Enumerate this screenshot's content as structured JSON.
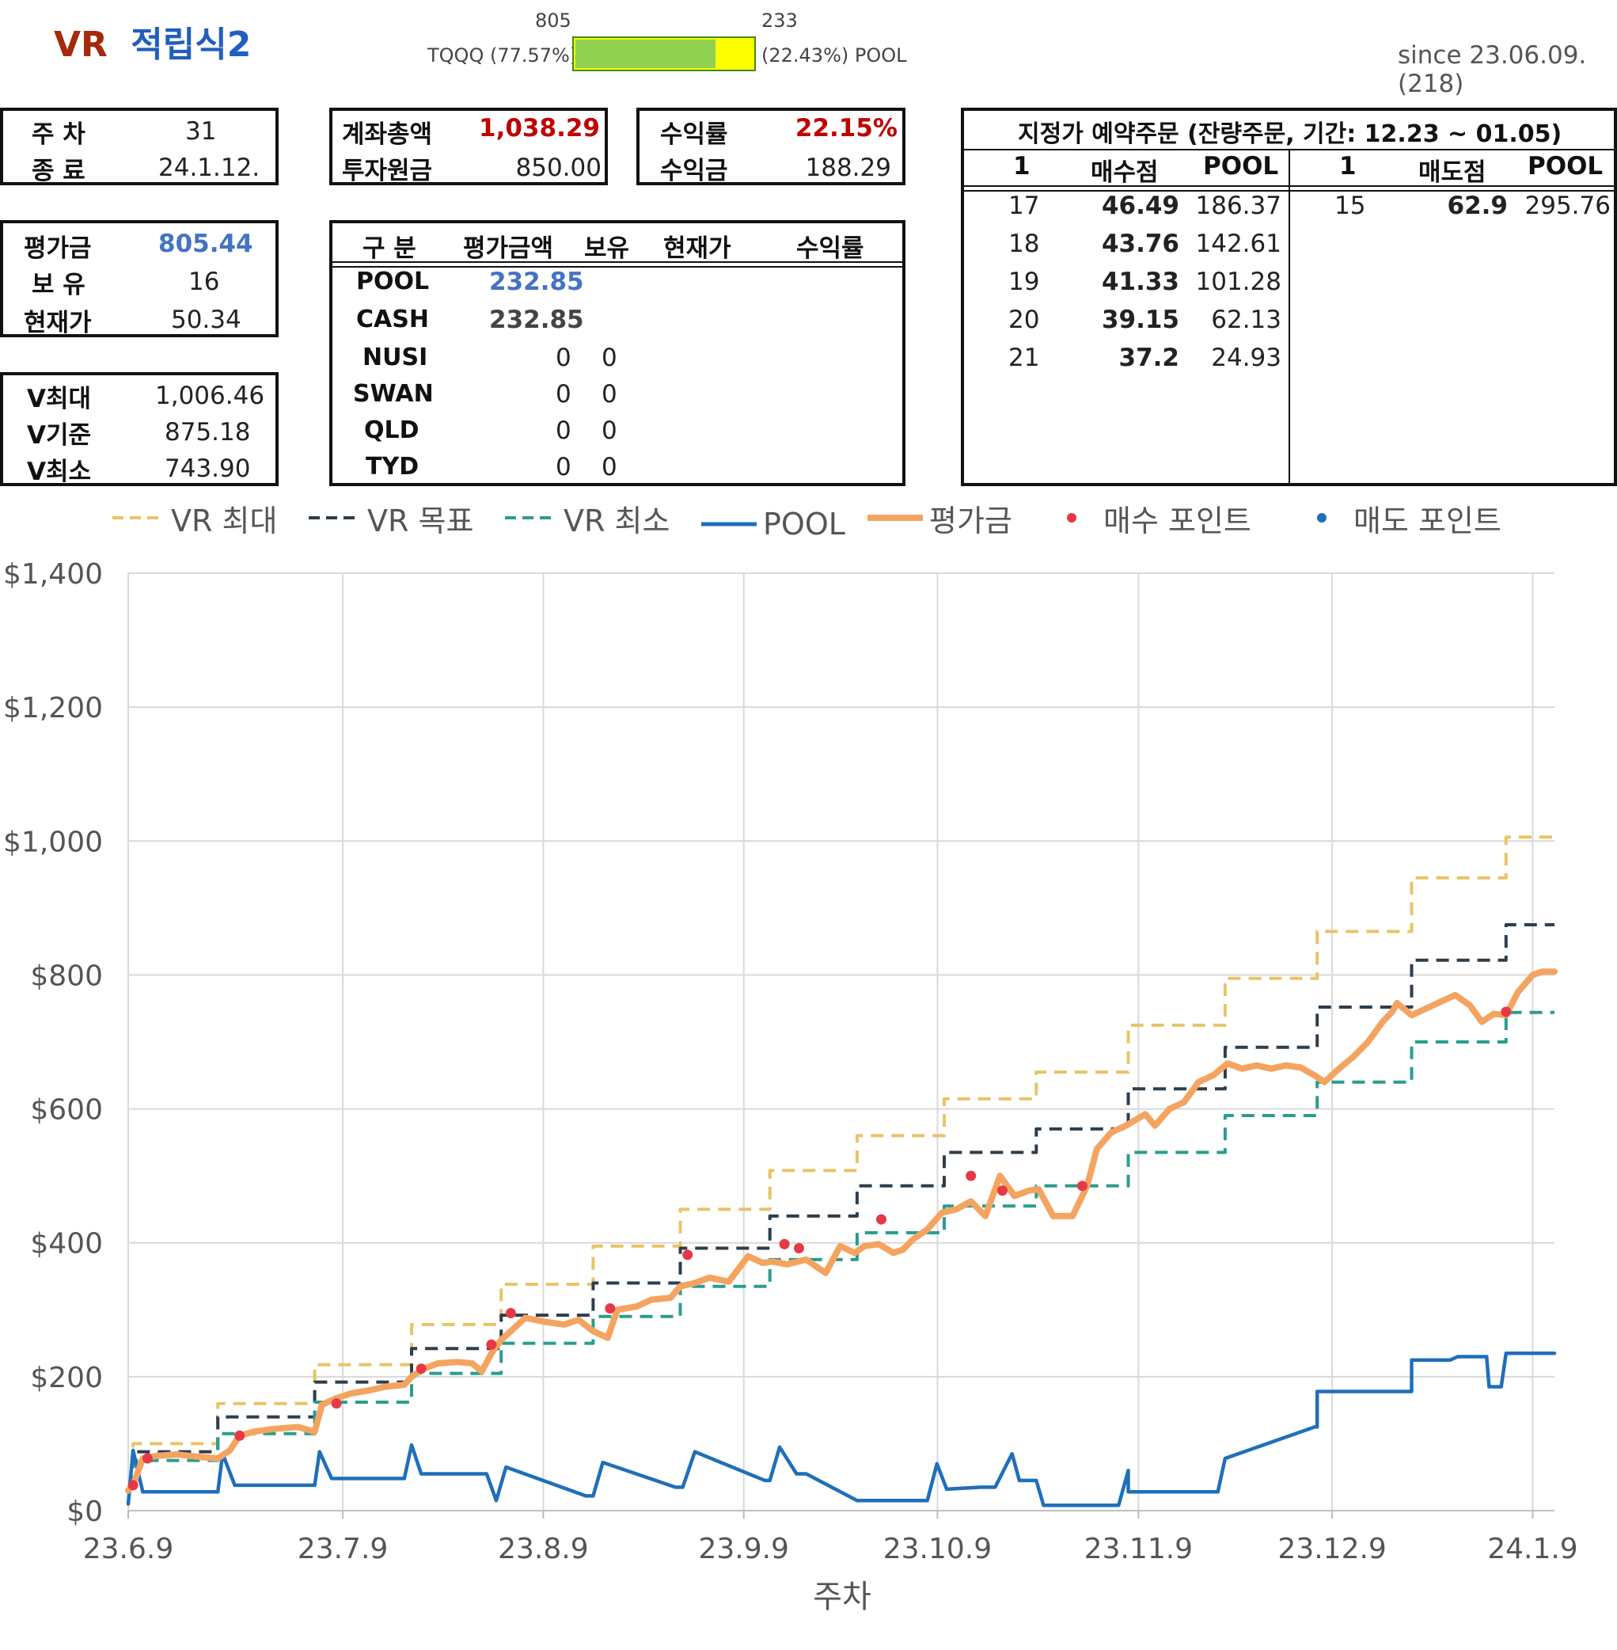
{
  "header": {
    "title_vr": "VR",
    "title_rest": "적립식2",
    "bar_left_value": "805",
    "bar_right_value": "233",
    "bar_left_label": "TQQQ (77.57%)",
    "bar_right_label": "(22.43%) POOL",
    "bar_fraction": 0.7757,
    "since": "since 23.06.09.(218)"
  },
  "week_box": {
    "week_label": "주 차",
    "week_value": "31",
    "end_label": "종 료",
    "end_value": "24.1.12."
  },
  "account_box": {
    "total_label": "계좌총액",
    "total_value": "1,038.29",
    "principal_label": "투자원금",
    "principal_value": "850.00"
  },
  "return_box": {
    "rate_label": "수익률",
    "rate_value": "22.15%",
    "profit_label": "수익금",
    "profit_value": "188.29"
  },
  "eval_box": {
    "eval_label": "평가금",
    "eval_value": "805.44",
    "hold_label": "보 유",
    "hold_value": "16",
    "price_label": "현재가",
    "price_value": "50.34"
  },
  "v_box": {
    "vmax_label": "V최대",
    "vmax_value": "1,006.46",
    "vbase_label": "V기준",
    "vbase_value": "875.18",
    "vmin_label": "V최소",
    "vmin_value": "743.90"
  },
  "holdings": {
    "headers": [
      "구 분",
      "평가금액",
      "보유",
      "현재가",
      "수익률"
    ],
    "rows": [
      {
        "name": "POOL",
        "amount": "232.85",
        "hold": ""
      },
      {
        "name": "CASH",
        "amount": "232.85",
        "hold": ""
      },
      {
        "name": "NUSI",
        "amount": "0",
        "hold": "0"
      },
      {
        "name": "SWAN",
        "amount": "0",
        "hold": "0"
      },
      {
        "name": "QLD",
        "amount": "0",
        "hold": "0"
      },
      {
        "name": "TYD",
        "amount": "0",
        "hold": "0"
      }
    ]
  },
  "orders": {
    "title": "지정가 예약주문 (잔량주문, 기간: 12.23 ~ 01.05)",
    "buy_headers": [
      "1",
      "매수점",
      "POOL"
    ],
    "sell_headers": [
      "1",
      "매도점",
      "POOL"
    ],
    "buy_rows": [
      {
        "n": "17",
        "price": "46.49",
        "pool": "186.37"
      },
      {
        "n": "18",
        "price": "43.76",
        "pool": "142.61"
      },
      {
        "n": "19",
        "price": "41.33",
        "pool": "101.28"
      },
      {
        "n": "20",
        "price": "39.15",
        "pool": "62.13"
      },
      {
        "n": "21",
        "price": "37.2",
        "pool": "24.93"
      }
    ],
    "sell_rows": [
      {
        "n": "15",
        "price": "62.9",
        "pool": "295.76"
      }
    ]
  },
  "chart_data": {
    "type": "line",
    "xlabel": "주차",
    "ylabel": "",
    "ylim": [
      0,
      1400
    ],
    "yticks": [
      0,
      200,
      400,
      600,
      800,
      1000,
      1200,
      1400
    ],
    "ytick_labels": [
      "$0",
      "$200",
      "$400",
      "$600",
      "$800",
      "$1,000",
      "$1,200",
      "$1,400"
    ],
    "xticks": [
      0,
      4.43,
      8.57,
      12.71,
      16.71,
      20.86,
      24.86,
      29.0
    ],
    "xtick_labels": [
      "23.6.9",
      "23.7.9",
      "23.8.9",
      "23.9.9",
      "23.10.9",
      "23.11.9",
      "23.12.9",
      "24.1.9"
    ],
    "xlim": [
      0,
      29.45
    ],
    "grid": true,
    "legend_position": "top",
    "colors": {
      "vmax": "#e8c468",
      "vtarget": "#2d3e4c",
      "vmin": "#2a9d8f",
      "pool": "#1f6fba",
      "eval": "#f4a460",
      "buy": "#e63946",
      "sell": "#1f6fba"
    },
    "series": [
      {
        "name": "VR 최대",
        "style": "dashed",
        "x": [
          0,
          0.1,
          0.1,
          1.85,
          1.85,
          3.85,
          3.85,
          5.85,
          5.85,
          7.7,
          7.7,
          9.6,
          9.6,
          11.4,
          11.4,
          13.25,
          13.25,
          15.05,
          15.05,
          16.85,
          16.85,
          18.75,
          18.75,
          20.65,
          20.65,
          22.65,
          22.65,
          24.55,
          24.55,
          26.5,
          26.5,
          28.45,
          28.45,
          29.45
        ],
        "y": [
          40,
          40,
          100,
          100,
          160,
          160,
          218,
          218,
          278,
          278,
          338,
          338,
          395,
          395,
          450,
          450,
          508,
          508,
          560,
          560,
          615,
          615,
          655,
          655,
          725,
          725,
          795,
          795,
          865,
          865,
          945,
          945,
          1006,
          1006
        ]
      },
      {
        "name": "VR 목표",
        "style": "dashed",
        "x": [
          0,
          0.1,
          0.1,
          1.85,
          1.85,
          3.85,
          3.85,
          5.85,
          5.85,
          7.7,
          7.7,
          9.6,
          9.6,
          11.4,
          11.4,
          13.25,
          13.25,
          15.05,
          15.05,
          16.85,
          16.85,
          18.75,
          18.75,
          20.65,
          20.65,
          22.65,
          22.65,
          24.55,
          24.55,
          26.5,
          26.5,
          28.45,
          28.45,
          29.45
        ],
        "y": [
          40,
          40,
          88,
          88,
          140,
          140,
          192,
          192,
          242,
          242,
          292,
          292,
          340,
          340,
          392,
          392,
          440,
          440,
          485,
          485,
          535,
          535,
          570,
          570,
          630,
          630,
          692,
          692,
          752,
          752,
          822,
          822,
          875,
          875
        ]
      },
      {
        "name": "VR 최소",
        "style": "dashed",
        "x": [
          0,
          0.1,
          0.1,
          1.85,
          1.85,
          3.85,
          3.85,
          5.85,
          5.85,
          7.7,
          7.7,
          9.6,
          9.6,
          11.4,
          11.4,
          13.25,
          13.25,
          15.05,
          15.05,
          16.85,
          16.85,
          18.75,
          18.75,
          20.65,
          20.65,
          22.65,
          22.65,
          24.55,
          24.55,
          26.5,
          26.5,
          28.45,
          28.45,
          29.45
        ],
        "y": [
          40,
          40,
          75,
          75,
          115,
          115,
          162,
          162,
          205,
          205,
          250,
          250,
          290,
          290,
          335,
          335,
          375,
          375,
          415,
          415,
          455,
          455,
          485,
          485,
          535,
          535,
          590,
          590,
          640,
          640,
          700,
          700,
          744,
          744
        ]
      },
      {
        "name": "POOL",
        "style": "solid",
        "x": [
          0,
          0.1,
          0.3,
          1.85,
          1.95,
          2.2,
          3.85,
          3.95,
          4.2,
          5.7,
          5.85,
          6.05,
          7.4,
          7.6,
          7.8,
          9.45,
          9.6,
          9.8,
          11.3,
          11.45,
          11.7,
          13.15,
          13.25,
          13.45,
          13.8,
          14,
          15.05,
          15.1,
          15.35,
          16.5,
          16.7,
          16.9,
          17.6,
          17.75,
          17.9,
          18.25,
          18.4,
          18.75,
          18.9,
          19.15,
          20.45,
          20.65,
          20.65,
          22.5,
          22.65,
          22.65,
          24.5,
          24.55,
          24.55,
          26.45,
          26.5,
          26.5,
          27.3,
          27.45,
          27.55,
          28.05,
          28.1,
          28.35,
          28.45,
          29.45
        ],
        "y": [
          10,
          90,
          28,
          28,
          85,
          38,
          38,
          88,
          48,
          48,
          98,
          55,
          55,
          15,
          65,
          22,
          22,
          72,
          35,
          35,
          88,
          45,
          45,
          95,
          55,
          55,
          15,
          15,
          15,
          15,
          70,
          32,
          35,
          35,
          35,
          85,
          45,
          45,
          8,
          8,
          8,
          60,
          28,
          28,
          78,
          78,
          125,
          125,
          178,
          178,
          178,
          225,
          225,
          230,
          230,
          230,
          185,
          185,
          235,
          235
        ]
      },
      {
        "name": "평가금",
        "style": "solid",
        "x": [
          0,
          0.1,
          0.3,
          0.6,
          1,
          1.5,
          1.85,
          2.1,
          2.3,
          2.6,
          3,
          3.5,
          3.85,
          4,
          4.3,
          4.6,
          5,
          5.3,
          5.7,
          5.85,
          6.1,
          6.4,
          6.8,
          7.1,
          7.3,
          7.5,
          7.7,
          7.9,
          8.2,
          8.6,
          9,
          9.3,
          9.6,
          9.9,
          10.1,
          10.5,
          10.8,
          11.2,
          11.4,
          11.7,
          12,
          12.4,
          12.8,
          13.1,
          13.3,
          13.6,
          14,
          14.4,
          14.7,
          15,
          15.2,
          15.5,
          15.8,
          16,
          16.2,
          16.5,
          16.8,
          17.1,
          17.4,
          17.7,
          18,
          18.3,
          18.6,
          18.8,
          19.1,
          19.5,
          19.8,
          20,
          20.3,
          20.6,
          21,
          21.2,
          21.5,
          21.8,
          22.1,
          22.4,
          22.7,
          23,
          23.3,
          23.6,
          23.9,
          24.2,
          24.5,
          24.7,
          25,
          25.3,
          25.6,
          25.9,
          26.1,
          26.2,
          26.5,
          26.8,
          27.1,
          27.4,
          27.7,
          27.95,
          28.2,
          28.45,
          28.7,
          29,
          29.2,
          29.45
        ],
        "y": [
          30,
          38,
          78,
          82,
          84,
          80,
          78,
          90,
          112,
          118,
          122,
          125,
          118,
          158,
          168,
          175,
          180,
          185,
          188,
          200,
          212,
          220,
          222,
          220,
          208,
          235,
          255,
          268,
          288,
          282,
          278,
          285,
          268,
          258,
          300,
          305,
          315,
          318,
          335,
          340,
          348,
          342,
          380,
          370,
          372,
          368,
          375,
          355,
          395,
          385,
          395,
          398,
          385,
          390,
          405,
          420,
          445,
          450,
          462,
          440,
          500,
          470,
          478,
          480,
          440,
          440,
          485,
          540,
          565,
          575,
          592,
          575,
          600,
          610,
          640,
          650,
          668,
          660,
          665,
          660,
          665,
          662,
          650,
          640,
          660,
          678,
          700,
          730,
          745,
          758,
          740,
          750,
          760,
          770,
          755,
          730,
          742,
          740,
          775,
          800,
          805,
          805
        ]
      },
      {
        "name": "매수 포인트",
        "style": "points",
        "x": [
          0.1,
          0.4,
          2.3,
          4.3,
          6.05,
          7.5,
          7.9,
          9.95,
          11.55,
          13.55,
          13.85,
          15.55,
          17.4,
          18.05,
          19.7,
          28.45
        ],
        "y": [
          38,
          78,
          112,
          160,
          212,
          248,
          295,
          302,
          382,
          398,
          392,
          435,
          500,
          478,
          485,
          745
        ]
      },
      {
        "name": "매도 포인트",
        "style": "points",
        "x": [],
        "y": []
      }
    ]
  }
}
